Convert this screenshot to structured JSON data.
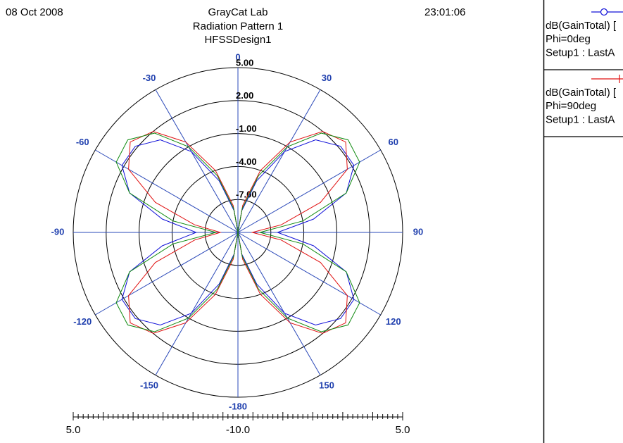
{
  "chart_data": {
    "type": "polar",
    "date": "08 Oct 2008",
    "title": "GrayCat Lab",
    "subtitle": "Radiation Pattern 1",
    "design_name": "HFSSDesign1",
    "time": "23:01:06",
    "rlim": [
      -10,
      5
    ],
    "rticks": [
      {
        "value": 5,
        "label": "5.00"
      },
      {
        "value": 2,
        "label": "2.00"
      },
      {
        "value": -1,
        "label": "-1.00"
      },
      {
        "value": -4,
        "label": "-4.00"
      },
      {
        "value": -7,
        "label": "-7.00"
      }
    ],
    "angle_ticks": [
      0,
      30,
      60,
      90,
      120,
      150,
      -180,
      -150,
      -120,
      -90,
      -60,
      -30
    ],
    "scale_labels": [
      {
        "value": 5,
        "label": "5.0"
      },
      {
        "value": -10,
        "label": "-10.0"
      },
      {
        "value": 5,
        "label": "5.0"
      }
    ],
    "x": [
      -180,
      -170,
      -160,
      -150,
      -140,
      -130,
      -120,
      -110,
      -100,
      -90,
      -80,
      -70,
      -60,
      -50,
      -40,
      -30,
      -20,
      -10,
      0,
      10,
      20,
      30,
      40,
      50,
      60,
      70,
      80,
      90,
      100,
      110,
      120,
      130,
      140,
      150,
      160,
      170,
      180
    ],
    "series": [
      {
        "name": "dB(GainTotal) [",
        "legend_lines": [
          "Phi=0deg",
          "Setup1 : LastA"
        ],
        "color": "#1010d8",
        "marker": "circle",
        "values": [
          -10,
          -8,
          -5,
          -1.5,
          1,
          2.2,
          2.2,
          0.5,
          -3,
          -6.2,
          -3,
          0.5,
          2.2,
          2.2,
          1,
          -1.5,
          -5,
          -8,
          -10,
          -8,
          -5,
          -1.5,
          1,
          2.2,
          2.2,
          0.5,
          -3,
          -6.4,
          -3,
          0.5,
          2.2,
          2.2,
          1,
          -1.5,
          -5,
          -8,
          -10
        ]
      },
      {
        "name": "dB(GainTotal) [",
        "legend_lines": [
          "Phi=90deg",
          "Setup1 : LastA"
        ],
        "color": "#e01010",
        "marker": "plus",
        "values": [
          -10,
          -7.5,
          -4,
          -0.5,
          2,
          2.8,
          1.5,
          -2,
          -6,
          -8.4,
          -6,
          -2,
          1.5,
          2.8,
          2,
          -0.5,
          -4,
          -7.5,
          -10,
          -7.5,
          -4,
          -0.5,
          2,
          2.8,
          1.5,
          -2,
          -6,
          -8.7,
          -6,
          -2,
          1.5,
          2.8,
          2,
          -0.5,
          -4,
          -7.5,
          -10
        ]
      },
      {
        "color": "#108a10",
        "values": [
          -10,
          -7.8,
          -4.5,
          -1,
          1.8,
          3.1,
          2.8,
          0.5,
          -4,
          -8,
          -4,
          0.5,
          2.8,
          3.1,
          1.8,
          -1,
          -4.5,
          -7.8,
          -10,
          -7.8,
          -4.5,
          -1,
          1.8,
          3.1,
          2.8,
          0.5,
          -4,
          -8,
          -4,
          0.5,
          2.8,
          3.1,
          1.8,
          -1,
          -4.5,
          -7.8,
          -10
        ]
      }
    ]
  }
}
